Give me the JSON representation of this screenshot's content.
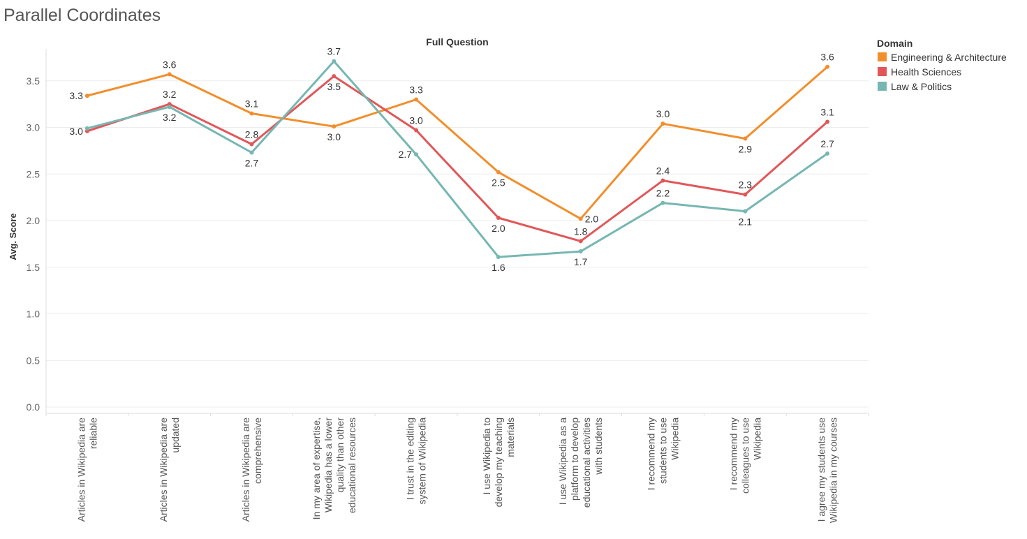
{
  "page": {
    "title": "Parallel Coordinates"
  },
  "chart_data": {
    "type": "line",
    "title": "Parallel Coordinates",
    "xlabel": "Full Question",
    "ylabel": "Avg. Score",
    "ylim": [
      0,
      3.85
    ],
    "yticks": [
      "0.0",
      "0.5",
      "1.0",
      "1.5",
      "2.0",
      "2.5",
      "3.0",
      "3.5"
    ],
    "grid": true,
    "legend": {
      "title": "Domain",
      "placement": "top-right"
    },
    "categories": [
      [
        "Articles in Wikipedia are",
        "reliable"
      ],
      [
        "Articles in Wikipedia are",
        "updated"
      ],
      [
        "Articles in Wikipedia are",
        "comprehensive"
      ],
      [
        "In my area of expertise,",
        "Wikipedia has a lower",
        "quality than other",
        "educational resources"
      ],
      [
        "I trust in the editing",
        "system of Wikipedia"
      ],
      [
        "I use Wikipedia to",
        "develop my teaching",
        "materials"
      ],
      [
        "I use Wikipedia as a",
        "platform to develop",
        "educational activities",
        "with students"
      ],
      [
        "I recommend my",
        "students to use",
        "Wikipedia"
      ],
      [
        "I recommend my",
        "colleagues to use",
        "Wikipedia"
      ],
      [
        "I agree my students use",
        "Wikipedia in my courses"
      ]
    ],
    "series": [
      {
        "name": "Engineering & Architecture",
        "color": "#f28e2b",
        "values": [
          3.34,
          3.57,
          3.15,
          3.01,
          3.3,
          2.52,
          2.02,
          3.04,
          2.88,
          3.65
        ],
        "labels": [
          "3.3",
          "3.6",
          "3.1",
          "3.0",
          "3.3",
          "2.5",
          "2.0",
          "3.0",
          "2.9",
          "3.6"
        ],
        "label_pos": [
          "left",
          "above",
          "above",
          "below",
          "above",
          "below",
          "right",
          "above",
          "below",
          "above"
        ]
      },
      {
        "name": "Health Sciences",
        "color": "#e15759",
        "values": [
          2.96,
          3.25,
          2.82,
          3.55,
          2.97,
          2.03,
          1.78,
          2.43,
          2.28,
          3.06
        ],
        "labels": [
          "3.0",
          "3.2",
          "2.8",
          "3.5",
          "3.0",
          "2.0",
          "1.8",
          "2.4",
          "2.3",
          "3.1"
        ],
        "label_pos": [
          "left",
          "above",
          "above",
          "below",
          "above",
          "below",
          "above",
          "above",
          "above",
          "above"
        ]
      },
      {
        "name": "Law & Politics",
        "color": "#76b7b2",
        "values": [
          2.99,
          3.22,
          2.73,
          3.71,
          2.71,
          1.61,
          1.67,
          2.19,
          2.1,
          2.72
        ],
        "labels": [
          "3.0",
          "3.2",
          "2.7",
          "3.7",
          "2.7",
          "1.6",
          "1.7",
          "2.2",
          "2.1",
          "2.7"
        ],
        "label_pos": [
          "none",
          "below",
          "below",
          "above",
          "left",
          "below",
          "below",
          "above",
          "below",
          "above"
        ]
      }
    ]
  }
}
